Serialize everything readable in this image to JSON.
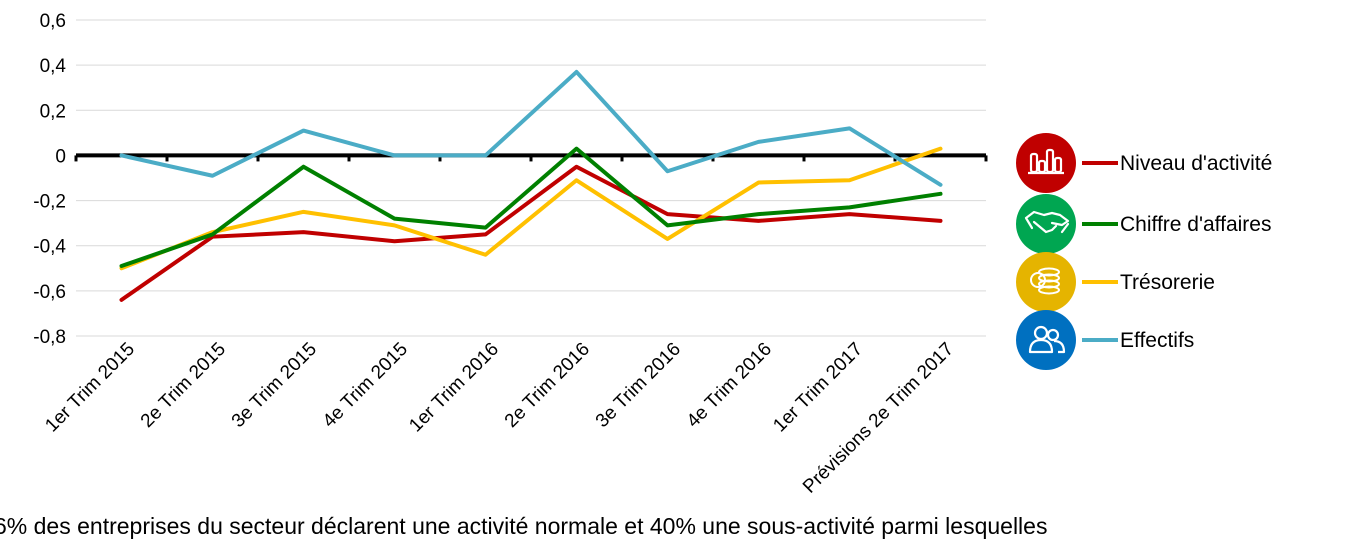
{
  "chart_data": {
    "type": "line",
    "categories": [
      "1er Trim 2015",
      "2e Trim 2015",
      "3e Trim 2015",
      "4e Trim 2015",
      "1er Trim 2016",
      "2e Trim 2016",
      "3e Trim 2016",
      "4e Trim 2016",
      "1er Trim 2017",
      "Prévisions 2e Trim 2017"
    ],
    "series": [
      {
        "name": "Niveau d'activité",
        "color": "#C00000",
        "icon": "bar-chart-icon",
        "values": [
          -0.64,
          -0.36,
          -0.34,
          -0.38,
          -0.35,
          -0.05,
          -0.26,
          -0.29,
          -0.26,
          -0.29
        ]
      },
      {
        "name": "Chiffre d'affaires",
        "color": "#008000",
        "icon": "handshake-icon",
        "values": [
          -0.49,
          -0.35,
          -0.05,
          -0.28,
          -0.32,
          0.03,
          -0.31,
          -0.26,
          -0.23,
          -0.17
        ]
      },
      {
        "name": "Trésorerie",
        "color": "#FFC000",
        "icon": "coins-icon",
        "values": [
          -0.5,
          -0.34,
          -0.25,
          -0.31,
          -0.44,
          -0.11,
          -0.37,
          -0.12,
          -0.11,
          0.03
        ]
      },
      {
        "name": "Effectifs",
        "color": "#4BACC6",
        "icon": "people-icon",
        "values": [
          0.0,
          -0.09,
          0.11,
          0.0,
          0.0,
          0.37,
          -0.07,
          0.06,
          0.12,
          -0.13
        ]
      }
    ],
    "y_tick_labels": [
      "0,6",
      "0,4",
      "0,2",
      "0",
      "-0,2",
      "-0,4",
      "-0,6",
      "-0,8"
    ],
    "ylim": [
      -0.8,
      0.6
    ],
    "title": "",
    "xlabel": "",
    "ylabel": "",
    "grid": true,
    "legend_position": "right",
    "icon_colors": [
      "#C00000",
      "#00A651",
      "#E5B400",
      "#0070C0"
    ]
  },
  "footer": {
    "text": "6% des entreprises du secteur déclarent une activité normale et 40% une sous-activité parmi lesquelles"
  }
}
